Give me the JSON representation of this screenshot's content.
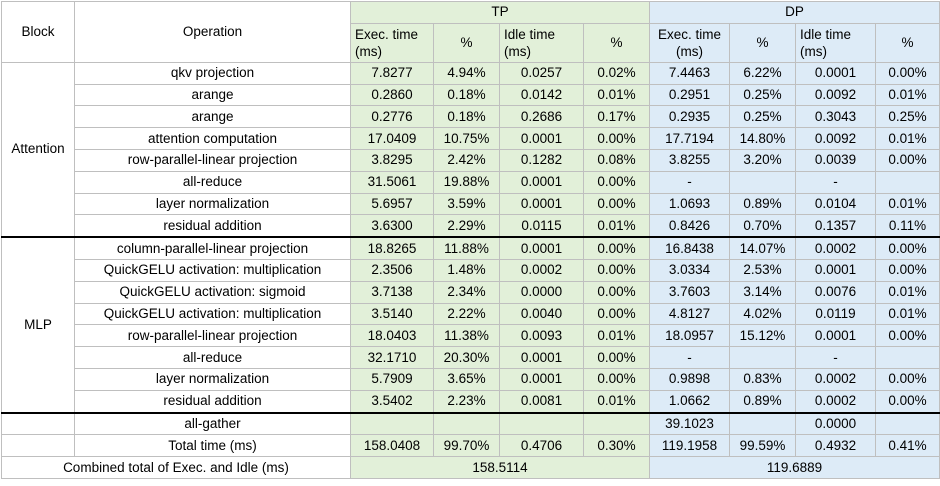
{
  "headers": {
    "block": "Block",
    "operation": "Operation",
    "tp": "TP",
    "dp": "DP",
    "tp_exec": "Exec. time (ms)",
    "tp_exec_pct": "%",
    "tp_idle": "Idle time (ms)",
    "tp_idle_pct": "%",
    "dp_exec": "Exec. time (ms)",
    "dp_exec_pct": "%",
    "dp_idle": "Idle time (ms)",
    "dp_idle_pct": "%"
  },
  "blocks": {
    "attention": "Attention",
    "mlp": "MLP"
  },
  "rows": [
    {
      "op": "qkv projection",
      "tp_exec": "7.8277",
      "tp_exec_pct": "4.94%",
      "tp_idle": "0.0257",
      "tp_idle_pct": "0.02%",
      "dp_exec": "7.4463",
      "dp_exec_pct": "6.22%",
      "dp_idle": "0.0001",
      "dp_idle_pct": "0.00%"
    },
    {
      "op": "arange",
      "tp_exec": "0.2860",
      "tp_exec_pct": "0.18%",
      "tp_idle": "0.0142",
      "tp_idle_pct": "0.01%",
      "dp_exec": "0.2951",
      "dp_exec_pct": "0.25%",
      "dp_idle": "0.0092",
      "dp_idle_pct": "0.01%"
    },
    {
      "op": "arange",
      "tp_exec": "0.2776",
      "tp_exec_pct": "0.18%",
      "tp_idle": "0.2686",
      "tp_idle_pct": "0.17%",
      "dp_exec": "0.2935",
      "dp_exec_pct": "0.25%",
      "dp_idle": "0.3043",
      "dp_idle_pct": "0.25%"
    },
    {
      "op": "attention computation",
      "tp_exec": "17.0409",
      "tp_exec_pct": "10.75%",
      "tp_idle": "0.0001",
      "tp_idle_pct": "0.00%",
      "dp_exec": "17.7194",
      "dp_exec_pct": "14.80%",
      "dp_idle": "0.0092",
      "dp_idle_pct": "0.01%"
    },
    {
      "op": "row-parallel-linear projection",
      "tp_exec": "3.8295",
      "tp_exec_pct": "2.42%",
      "tp_idle": "0.1282",
      "tp_idle_pct": "0.08%",
      "dp_exec": "3.8255",
      "dp_exec_pct": "3.20%",
      "dp_idle": "0.0039",
      "dp_idle_pct": "0.00%"
    },
    {
      "op": "all-reduce",
      "tp_exec": "31.5061",
      "tp_exec_pct": "19.88%",
      "tp_idle": "0.0001",
      "tp_idle_pct": "0.00%",
      "dp_exec": "-",
      "dp_exec_pct": "",
      "dp_idle": "-",
      "dp_idle_pct": ""
    },
    {
      "op": "layer normalization",
      "tp_exec": "5.6957",
      "tp_exec_pct": "3.59%",
      "tp_idle": "0.0001",
      "tp_idle_pct": "0.00%",
      "dp_exec": "1.0693",
      "dp_exec_pct": "0.89%",
      "dp_idle": "0.0104",
      "dp_idle_pct": "0.01%"
    },
    {
      "op": "residual addition",
      "tp_exec": "3.6300",
      "tp_exec_pct": "2.29%",
      "tp_idle": "0.0115",
      "tp_idle_pct": "0.01%",
      "dp_exec": "0.8426",
      "dp_exec_pct": "0.70%",
      "dp_idle": "0.1357",
      "dp_idle_pct": "0.11%"
    },
    {
      "op": "column-parallel-linear projection",
      "tp_exec": "18.8265",
      "tp_exec_pct": "11.88%",
      "tp_idle": "0.0001",
      "tp_idle_pct": "0.00%",
      "dp_exec": "16.8438",
      "dp_exec_pct": "14.07%",
      "dp_idle": "0.0002",
      "dp_idle_pct": "0.00%"
    },
    {
      "op": "QuickGELU activation: multiplication",
      "tp_exec": "2.3506",
      "tp_exec_pct": "1.48%",
      "tp_idle": "0.0002",
      "tp_idle_pct": "0.00%",
      "dp_exec": "3.0334",
      "dp_exec_pct": "2.53%",
      "dp_idle": "0.0001",
      "dp_idle_pct": "0.00%"
    },
    {
      "op": "QuickGELU activation: sigmoid",
      "tp_exec": "3.7138",
      "tp_exec_pct": "2.34%",
      "tp_idle": "0.0000",
      "tp_idle_pct": "0.00%",
      "dp_exec": "3.7603",
      "dp_exec_pct": "3.14%",
      "dp_idle": "0.0076",
      "dp_idle_pct": "0.01%"
    },
    {
      "op": "QuickGELU activation: multiplication",
      "tp_exec": "3.5140",
      "tp_exec_pct": "2.22%",
      "tp_idle": "0.0040",
      "tp_idle_pct": "0.00%",
      "dp_exec": "4.8127",
      "dp_exec_pct": "4.02%",
      "dp_idle": "0.0119",
      "dp_idle_pct": "0.01%"
    },
    {
      "op": "row-parallel-linear projection",
      "tp_exec": "18.0403",
      "tp_exec_pct": "11.38%",
      "tp_idle": "0.0093",
      "tp_idle_pct": "0.01%",
      "dp_exec": "18.0957",
      "dp_exec_pct": "15.12%",
      "dp_idle": "0.0001",
      "dp_idle_pct": "0.00%"
    },
    {
      "op": "all-reduce",
      "tp_exec": "32.1710",
      "tp_exec_pct": "20.30%",
      "tp_idle": "0.0001",
      "tp_idle_pct": "0.00%",
      "dp_exec": "-",
      "dp_exec_pct": "",
      "dp_idle": "-",
      "dp_idle_pct": ""
    },
    {
      "op": "layer normalization",
      "tp_exec": "5.7909",
      "tp_exec_pct": "3.65%",
      "tp_idle": "0.0001",
      "tp_idle_pct": "0.00%",
      "dp_exec": "0.9898",
      "dp_exec_pct": "0.83%",
      "dp_idle": "0.0002",
      "dp_idle_pct": "0.00%"
    },
    {
      "op": "residual addition",
      "tp_exec": "3.5402",
      "tp_exec_pct": "2.23%",
      "tp_idle": "0.0081",
      "tp_idle_pct": "0.01%",
      "dp_exec": "1.0662",
      "dp_exec_pct": "0.89%",
      "dp_idle": "0.0002",
      "dp_idle_pct": "0.00%"
    }
  ],
  "all_gather": {
    "op": "all-gather",
    "tp_exec": "",
    "tp_exec_pct": "",
    "tp_idle": "",
    "tp_idle_pct": "",
    "dp_exec": "39.1023",
    "dp_exec_pct": "",
    "dp_idle": "0.0000",
    "dp_idle_pct": ""
  },
  "total": {
    "op": "Total time (ms)",
    "tp_exec": "158.0408",
    "tp_exec_pct": "99.70%",
    "tp_idle": "0.4706",
    "tp_idle_pct": "0.30%",
    "dp_exec": "119.1958",
    "dp_exec_pct": "99.59%",
    "dp_idle": "0.4932",
    "dp_idle_pct": "0.41%"
  },
  "combined": {
    "label": "Combined total of Exec. and Idle (ms)",
    "tp": "158.5114",
    "dp": "119.6889"
  }
}
